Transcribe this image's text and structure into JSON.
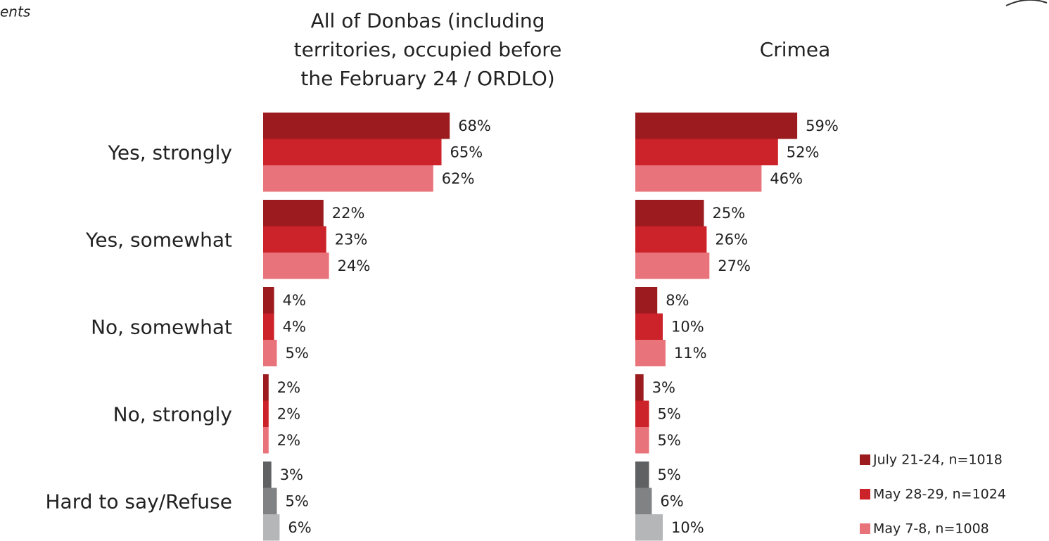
{
  "header_fragment": "ents",
  "chart_data": [
    {
      "type": "hbar",
      "title": [
        "All of Donbas (including",
        "territories, occupied before",
        "the February 24 / ORDLO)"
      ],
      "categories": [
        "Yes, strongly",
        "Yes, somewhat",
        "No, somewhat",
        "No, strongly",
        "Hard to say/Refuse"
      ],
      "xlim": [
        0,
        100
      ],
      "series": [
        {
          "name": "July 21-24, n=1018",
          "color": "#9b1b1e",
          "colors": [
            "#9b1b1e",
            "#9b1b1e",
            "#9b1b1e",
            "#9b1b1e",
            "#5f6163"
          ],
          "values": [
            68,
            22,
            4,
            2,
            3
          ],
          "value_labels": [
            "68%",
            "22%",
            "4%",
            "2%",
            "3%"
          ]
        },
        {
          "name": "May 28-29, n=1024",
          "color": "#cc2229",
          "colors": [
            "#cc2229",
            "#cc2229",
            "#cc2229",
            "#cc2229",
            "#808284"
          ],
          "values": [
            65,
            23,
            4,
            2,
            5
          ],
          "value_labels": [
            "65%",
            "23%",
            "4%",
            "2%",
            "5%"
          ]
        },
        {
          "name": "May 7-8, n=1008",
          "color": "#e8737a",
          "colors": [
            "#e8737a",
            "#e8737a",
            "#e8737a",
            "#e8737a",
            "#b4b6b8"
          ],
          "values": [
            62,
            24,
            5,
            2,
            6
          ],
          "value_labels": [
            "62%",
            "24%",
            "5%",
            "2%",
            "6%"
          ]
        }
      ]
    },
    {
      "type": "hbar",
      "title": "Crimea",
      "xlim": [
        0,
        100
      ],
      "series": [
        {
          "color": "#9b1b1e",
          "colors": [
            "#9b1b1e",
            "#9b1b1e",
            "#9b1b1e",
            "#9b1b1e",
            "#5f6163"
          ],
          "values": [
            59,
            25,
            8,
            3,
            5
          ],
          "value_labels": [
            "59%",
            "25%",
            "8%",
            "3%",
            "5%"
          ]
        },
        {
          "color": "#cc2229",
          "colors": [
            "#cc2229",
            "#cc2229",
            "#cc2229",
            "#cc2229",
            "#808284"
          ],
          "values": [
            52,
            26,
            10,
            5,
            6
          ],
          "value_labels": [
            "52%",
            "26%",
            "10%",
            "5%",
            "6%"
          ]
        },
        {
          "color": "#e8737a",
          "colors": [
            "#e8737a",
            "#e8737a",
            "#e8737a",
            "#e8737a",
            "#b4b6b8"
          ],
          "values": [
            46,
            27,
            11,
            5,
            10
          ],
          "value_labels": [
            "46%",
            "27%",
            "11%",
            "5%",
            "10%"
          ]
        }
      ]
    }
  ]
}
